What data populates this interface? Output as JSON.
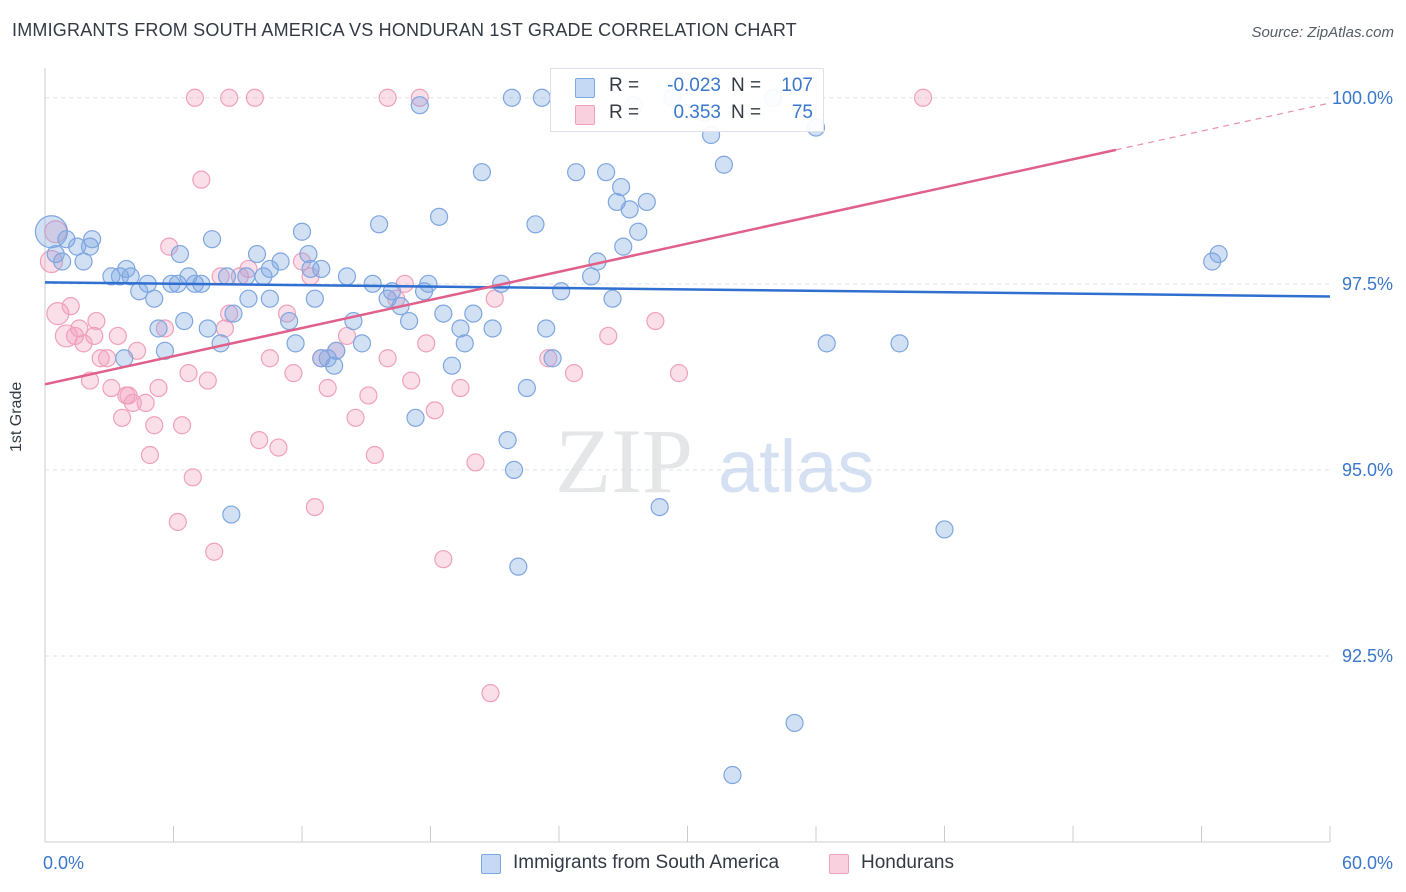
{
  "title": "IMMIGRANTS FROM SOUTH AMERICA VS HONDURAN 1ST GRADE CORRELATION CHART",
  "source": "Source: ZipAtlas.com",
  "watermark": {
    "zip": "ZIP",
    "atlas": "atlas"
  },
  "colors": {
    "blue": "#7ea6e0",
    "pink": "#f0a0bc",
    "blue_line": "#2f6fd0",
    "pink_line": "#e0608a",
    "tick_label": "#3a77cc"
  },
  "legend": {
    "rows": [
      {
        "r_label": "R =",
        "r_value": "-0.023",
        "n_label": "N =",
        "n_value": "107",
        "color": "#a9c4ec"
      },
      {
        "r_label": "R =",
        "r_value": "0.353",
        "n_label": "N =",
        "n_value": "75",
        "color": "#f6b8cc"
      }
    ]
  },
  "bottom_legend": [
    "Immigrants from South America",
    "Hondurans"
  ],
  "chart_data": {
    "type": "scatter",
    "title": "IMMIGRANTS FROM SOUTH AMERICA VS HONDURAN 1ST GRADE CORRELATION CHART",
    "xlabel": "",
    "ylabel": "1st Grade",
    "xlim": [
      0,
      60
    ],
    "ylim": [
      90.0,
      100.4
    ],
    "x_tick_labels": [
      "0.0%",
      "60.0%"
    ],
    "y_ticks": [
      92.5,
      95.0,
      97.5,
      100.0
    ],
    "y_tick_labels": [
      "92.5%",
      "95.0%",
      "97.5%",
      "100.0%"
    ],
    "grid": "horizontal dashed",
    "legend_position": "top-center",
    "series": [
      {
        "name": "Immigrants from South America",
        "color": "#7ea6e0",
        "trend": {
          "x": [
            0,
            60
          ],
          "y": [
            97.52,
            97.33
          ]
        },
        "points": [
          [
            0.3,
            98.2
          ],
          [
            0.5,
            97.9
          ],
          [
            0.8,
            97.8
          ],
          [
            1.0,
            98.1
          ],
          [
            1.5,
            98.0
          ],
          [
            1.8,
            97.8
          ],
          [
            2.1,
            98.0
          ],
          [
            2.2,
            98.1
          ],
          [
            3.1,
            97.6
          ],
          [
            3.5,
            97.6
          ],
          [
            3.8,
            97.7
          ],
          [
            4.0,
            97.6
          ],
          [
            4.4,
            97.4
          ],
          [
            4.8,
            97.5
          ],
          [
            5.1,
            97.3
          ],
          [
            5.3,
            96.9
          ],
          [
            5.6,
            96.6
          ],
          [
            5.9,
            97.5
          ],
          [
            6.2,
            97.5
          ],
          [
            6.7,
            97.6
          ],
          [
            6.3,
            97.9
          ],
          [
            6.5,
            97.0
          ],
          [
            7.0,
            97.5
          ],
          [
            7.3,
            97.5
          ],
          [
            7.6,
            96.9
          ],
          [
            7.8,
            98.1
          ],
          [
            8.2,
            96.7
          ],
          [
            8.5,
            97.6
          ],
          [
            8.8,
            97.1
          ],
          [
            9.4,
            97.6
          ],
          [
            9.5,
            97.3
          ],
          [
            9.9,
            97.9
          ],
          [
            10.2,
            97.6
          ],
          [
            10.5,
            97.7
          ],
          [
            11.0,
            97.8
          ],
          [
            11.4,
            97.0
          ],
          [
            11.7,
            96.7
          ],
          [
            12.0,
            98.2
          ],
          [
            12.3,
            97.9
          ],
          [
            12.4,
            97.7
          ],
          [
            12.6,
            97.3
          ],
          [
            12.9,
            97.7
          ],
          [
            13.2,
            96.5
          ],
          [
            13.5,
            96.4
          ],
          [
            13.6,
            96.6
          ],
          [
            14.1,
            97.6
          ],
          [
            14.4,
            97.0
          ],
          [
            14.8,
            96.7
          ],
          [
            15.3,
            97.5
          ],
          [
            15.6,
            98.3
          ],
          [
            16.0,
            97.3
          ],
          [
            16.2,
            97.4
          ],
          [
            16.6,
            97.2
          ],
          [
            17.0,
            97.0
          ],
          [
            17.3,
            95.7
          ],
          [
            17.7,
            97.4
          ],
          [
            17.9,
            97.5
          ],
          [
            18.4,
            98.4
          ],
          [
            18.6,
            97.1
          ],
          [
            19.0,
            96.4
          ],
          [
            19.4,
            96.9
          ],
          [
            19.6,
            96.7
          ],
          [
            20.0,
            97.1
          ],
          [
            20.4,
            99.0
          ],
          [
            20.9,
            96.9
          ],
          [
            21.3,
            97.5
          ],
          [
            21.6,
            95.4
          ],
          [
            21.9,
            95.0
          ],
          [
            22.1,
            93.7
          ],
          [
            22.5,
            96.1
          ],
          [
            22.9,
            98.3
          ],
          [
            23.4,
            96.9
          ],
          [
            23.7,
            96.5
          ],
          [
            24.1,
            97.4
          ],
          [
            24.8,
            99.0
          ],
          [
            25.5,
            97.6
          ],
          [
            25.8,
            97.8
          ],
          [
            26.2,
            99.0
          ],
          [
            26.5,
            97.3
          ],
          [
            26.7,
            98.6
          ],
          [
            26.9,
            98.8
          ],
          [
            27.0,
            98.0
          ],
          [
            27.3,
            98.5
          ],
          [
            27.5,
            99.9
          ],
          [
            27.7,
            98.2
          ],
          [
            28.1,
            98.6
          ],
          [
            28.7,
            94.5
          ],
          [
            30.8,
            99.8
          ],
          [
            31.1,
            99.5
          ],
          [
            31.7,
            99.1
          ],
          [
            32.1,
            90.9
          ],
          [
            35.0,
            91.6
          ],
          [
            36.5,
            96.7
          ],
          [
            39.9,
            96.7
          ],
          [
            42.0,
            94.2
          ],
          [
            54.5,
            97.8
          ],
          [
            54.8,
            97.9
          ],
          [
            3.7,
            96.5
          ],
          [
            8.7,
            94.4
          ],
          [
            10.5,
            97.3
          ],
          [
            17.5,
            99.9
          ],
          [
            21.8,
            100.0
          ],
          [
            23.2,
            100.0
          ],
          [
            29.3,
            100.0
          ],
          [
            34.0,
            100.0
          ],
          [
            36.0,
            99.6
          ],
          [
            12.9,
            96.5
          ]
        ]
      },
      {
        "name": "Hondurans",
        "color": "#f0a0bc",
        "trend": {
          "x": [
            0,
            50
          ],
          "y": [
            96.15,
            99.3
          ]
        },
        "trend_ext": {
          "x": [
            50,
            60
          ],
          "y": [
            99.3,
            99.93
          ]
        },
        "points": [
          [
            0.3,
            97.8
          ],
          [
            0.5,
            98.2
          ],
          [
            0.6,
            97.1
          ],
          [
            1.0,
            96.8
          ],
          [
            1.2,
            97.2
          ],
          [
            1.4,
            96.8
          ],
          [
            1.6,
            96.9
          ],
          [
            1.8,
            96.7
          ],
          [
            2.1,
            96.2
          ],
          [
            2.3,
            96.8
          ],
          [
            2.4,
            97.0
          ],
          [
            2.6,
            96.5
          ],
          [
            2.9,
            96.5
          ],
          [
            3.1,
            96.1
          ],
          [
            3.4,
            96.8
          ],
          [
            3.6,
            95.7
          ],
          [
            3.8,
            96.0
          ],
          [
            3.9,
            96.0
          ],
          [
            4.1,
            95.9
          ],
          [
            4.3,
            96.6
          ],
          [
            4.7,
            95.9
          ],
          [
            4.9,
            95.2
          ],
          [
            5.1,
            95.6
          ],
          [
            5.3,
            96.1
          ],
          [
            5.6,
            96.9
          ],
          [
            5.8,
            98.0
          ],
          [
            6.2,
            94.3
          ],
          [
            6.4,
            95.6
          ],
          [
            6.7,
            96.3
          ],
          [
            6.9,
            94.9
          ],
          [
            7.3,
            98.9
          ],
          [
            7.6,
            96.2
          ],
          [
            7.9,
            93.9
          ],
          [
            8.2,
            97.6
          ],
          [
            8.4,
            96.9
          ],
          [
            8.6,
            97.1
          ],
          [
            9.1,
            97.6
          ],
          [
            9.5,
            97.7
          ],
          [
            10.0,
            95.4
          ],
          [
            10.5,
            96.5
          ],
          [
            10.9,
            95.3
          ],
          [
            11.3,
            97.1
          ],
          [
            11.6,
            96.3
          ],
          [
            12.0,
            97.8
          ],
          [
            12.4,
            97.6
          ],
          [
            12.6,
            94.5
          ],
          [
            12.9,
            96.5
          ],
          [
            13.2,
            96.1
          ],
          [
            13.6,
            96.6
          ],
          [
            14.1,
            96.8
          ],
          [
            14.5,
            95.7
          ],
          [
            15.1,
            96.0
          ],
          [
            15.4,
            95.2
          ],
          [
            16.0,
            96.5
          ],
          [
            16.4,
            97.3
          ],
          [
            16.8,
            97.5
          ],
          [
            17.1,
            96.2
          ],
          [
            17.8,
            96.7
          ],
          [
            18.2,
            95.8
          ],
          [
            18.6,
            93.8
          ],
          [
            19.4,
            96.1
          ],
          [
            20.1,
            95.1
          ],
          [
            20.8,
            92.0
          ],
          [
            21.0,
            97.3
          ],
          [
            23.5,
            96.5
          ],
          [
            24.7,
            96.3
          ],
          [
            26.3,
            96.8
          ],
          [
            28.5,
            97.0
          ],
          [
            29.6,
            96.3
          ],
          [
            7.0,
            100.0
          ],
          [
            8.6,
            100.0
          ],
          [
            9.8,
            100.0
          ],
          [
            16.0,
            100.0
          ],
          [
            17.5,
            100.0
          ],
          [
            41.0,
            100.0
          ]
        ]
      }
    ]
  }
}
